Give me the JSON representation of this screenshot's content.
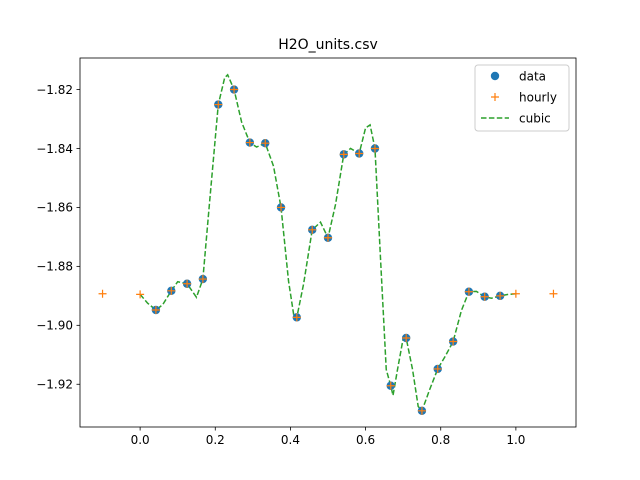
{
  "chart_data": {
    "type": "line",
    "title": "H2O_units.csv",
    "xlabel": "",
    "ylabel": "",
    "xlim": [
      -0.16,
      1.16
    ],
    "ylim": [
      -1.9345,
      -1.8093
    ],
    "x_ticks": [
      0.0,
      0.2,
      0.4,
      0.6,
      0.8,
      1.0
    ],
    "x_tick_labels": [
      "0.0",
      "0.2",
      "0.4",
      "0.6",
      "0.8",
      "1.0"
    ],
    "y_ticks": [
      -1.92,
      -1.9,
      -1.88,
      -1.86,
      -1.84,
      -1.82
    ],
    "y_tick_labels": [
      "−1.92",
      "−1.90",
      "−1.88",
      "−1.86",
      "−1.84",
      "−1.82"
    ],
    "grid": false,
    "legend_position": "top-right",
    "series": [
      {
        "name": "data",
        "style": "markers-circle",
        "color": "#1f77b4",
        "points": [
          [
            0.042,
            -1.8948
          ],
          [
            0.083,
            -1.8883
          ],
          [
            0.125,
            -1.8859
          ],
          [
            0.167,
            -1.8843
          ],
          [
            0.208,
            -1.8251
          ],
          [
            0.25,
            -1.82
          ],
          [
            0.292,
            -1.838
          ],
          [
            0.333,
            -1.8382
          ],
          [
            0.375,
            -1.86
          ],
          [
            0.417,
            -1.8973
          ],
          [
            0.458,
            -1.8676
          ],
          [
            0.5,
            -1.8703
          ],
          [
            0.542,
            -1.842
          ],
          [
            0.583,
            -1.8417
          ],
          [
            0.625,
            -1.84
          ],
          [
            0.667,
            -1.9205
          ],
          [
            0.708,
            -1.9043
          ],
          [
            0.75,
            -1.929
          ],
          [
            0.792,
            -1.9148
          ],
          [
            0.833,
            -1.9055
          ],
          [
            0.875,
            -1.8886
          ],
          [
            0.917,
            -1.8903
          ],
          [
            0.958,
            -1.89
          ]
        ]
      },
      {
        "name": "hourly",
        "style": "markers-plus",
        "color": "#ff7f0e",
        "points": [
          [
            -0.1,
            -1.8893
          ],
          [
            0.0,
            -1.8895
          ],
          [
            0.042,
            -1.8948
          ],
          [
            0.083,
            -1.8883
          ],
          [
            0.125,
            -1.8859
          ],
          [
            0.167,
            -1.8843
          ],
          [
            0.208,
            -1.8251
          ],
          [
            0.25,
            -1.82
          ],
          [
            0.292,
            -1.838
          ],
          [
            0.333,
            -1.8382
          ],
          [
            0.375,
            -1.86
          ],
          [
            0.417,
            -1.8973
          ],
          [
            0.458,
            -1.8676
          ],
          [
            0.5,
            -1.8703
          ],
          [
            0.542,
            -1.842
          ],
          [
            0.583,
            -1.8417
          ],
          [
            0.625,
            -1.84
          ],
          [
            0.667,
            -1.9205
          ],
          [
            0.708,
            -1.9043
          ],
          [
            0.75,
            -1.929
          ],
          [
            0.792,
            -1.9148
          ],
          [
            0.833,
            -1.9055
          ],
          [
            0.875,
            -1.8886
          ],
          [
            0.917,
            -1.8903
          ],
          [
            0.958,
            -1.89
          ],
          [
            1.0,
            -1.8893
          ],
          [
            1.1,
            -1.8893
          ]
        ]
      },
      {
        "name": "cubic",
        "style": "dashed-line",
        "color": "#2ca02c",
        "points": [
          [
            0.0,
            -1.8895
          ],
          [
            0.02,
            -1.8925
          ],
          [
            0.042,
            -1.8948
          ],
          [
            0.06,
            -1.893
          ],
          [
            0.083,
            -1.8883
          ],
          [
            0.1,
            -1.8852
          ],
          [
            0.125,
            -1.8859
          ],
          [
            0.15,
            -1.8905
          ],
          [
            0.167,
            -1.8843
          ],
          [
            0.185,
            -1.858
          ],
          [
            0.208,
            -1.8251
          ],
          [
            0.225,
            -1.816
          ],
          [
            0.233,
            -1.815
          ],
          [
            0.25,
            -1.82
          ],
          [
            0.27,
            -1.831
          ],
          [
            0.292,
            -1.838
          ],
          [
            0.31,
            -1.8395
          ],
          [
            0.333,
            -1.8382
          ],
          [
            0.355,
            -1.846
          ],
          [
            0.375,
            -1.86
          ],
          [
            0.395,
            -1.885
          ],
          [
            0.41,
            -1.8975
          ],
          [
            0.417,
            -1.8973
          ],
          [
            0.435,
            -1.886
          ],
          [
            0.458,
            -1.8676
          ],
          [
            0.48,
            -1.865
          ],
          [
            0.5,
            -1.8703
          ],
          [
            0.52,
            -1.859
          ],
          [
            0.542,
            -1.842
          ],
          [
            0.56,
            -1.84
          ],
          [
            0.583,
            -1.8417
          ],
          [
            0.6,
            -1.833
          ],
          [
            0.612,
            -1.832
          ],
          [
            0.625,
            -1.84
          ],
          [
            0.64,
            -1.878
          ],
          [
            0.655,
            -1.915
          ],
          [
            0.667,
            -1.9205
          ],
          [
            0.673,
            -1.9238
          ],
          [
            0.685,
            -1.915
          ],
          [
            0.7,
            -1.9045
          ],
          [
            0.708,
            -1.9043
          ],
          [
            0.725,
            -1.915
          ],
          [
            0.74,
            -1.9275
          ],
          [
            0.75,
            -1.929
          ],
          [
            0.77,
            -1.922
          ],
          [
            0.792,
            -1.9148
          ],
          [
            0.812,
            -1.9105
          ],
          [
            0.833,
            -1.9055
          ],
          [
            0.855,
            -1.895
          ],
          [
            0.875,
            -1.8886
          ],
          [
            0.895,
            -1.8885
          ],
          [
            0.917,
            -1.8903
          ],
          [
            0.935,
            -1.8908
          ],
          [
            0.958,
            -1.89
          ],
          [
            0.98,
            -1.8895
          ],
          [
            1.0,
            -1.8893
          ]
        ]
      }
    ]
  }
}
